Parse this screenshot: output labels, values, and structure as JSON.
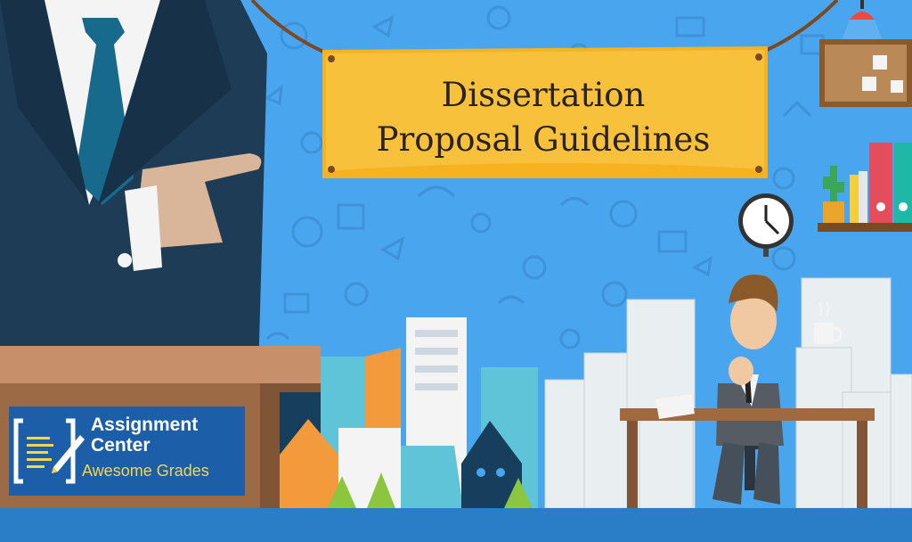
{
  "banner": {
    "line1": "Dissertation",
    "line2": "Proposal Guidelines",
    "color": "#f6b21f"
  },
  "logo": {
    "line1": "Assignment",
    "line2": "Center",
    "tagline": "Awesome Grades",
    "icon": "document-pen-icon",
    "box_color": "#1c5fa8",
    "tagline_color": "#f3d64a"
  },
  "scene": {
    "background_color": "#49a6ee",
    "floor_color": "#2a7ec8"
  }
}
